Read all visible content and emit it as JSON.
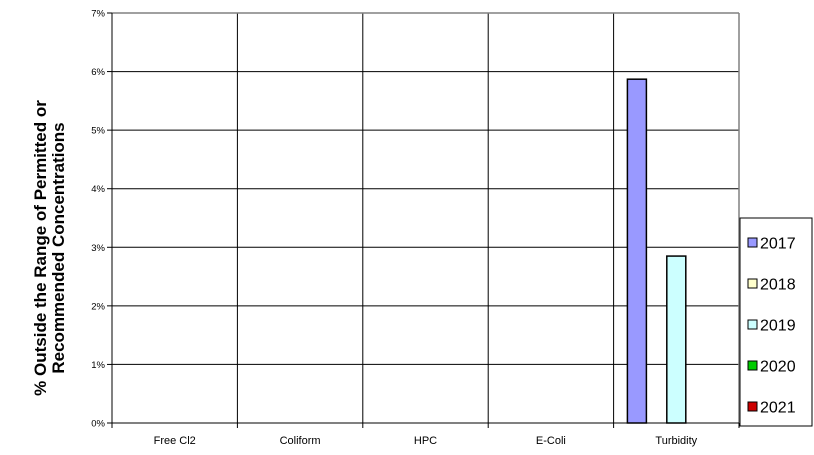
{
  "chart_data": {
    "type": "bar",
    "ylabel_lines": [
      "% Outside the Range of Permitted or",
      "Recommended Concentrations"
    ],
    "xlabel": "",
    "categories": [
      "Free Cl2",
      "Coliform",
      "HPC",
      "E-Coli",
      "Turbidity"
    ],
    "ylim": [
      0,
      7
    ],
    "y_ticks": [
      0,
      1,
      2,
      3,
      4,
      5,
      6,
      7
    ],
    "y_tick_labels": [
      "0%",
      "1%",
      "2%",
      "3%",
      "4%",
      "5%",
      "6%",
      "7%"
    ],
    "grid": true,
    "legend_position": "right",
    "series": [
      {
        "name": "2017",
        "color": "#9999ff",
        "values": [
          0,
          0,
          0,
          0,
          5.87
        ]
      },
      {
        "name": "2018",
        "color": "#ffffcc",
        "values": [
          0,
          0,
          0,
          0,
          0
        ]
      },
      {
        "name": "2019",
        "color": "#ccffff",
        "values": [
          0,
          0,
          0,
          0,
          2.85
        ]
      },
      {
        "name": "2020",
        "color": "#00cc00",
        "values": [
          0,
          0,
          0,
          0,
          0
        ]
      },
      {
        "name": "2021",
        "color": "#cc0000",
        "values": [
          0,
          0,
          0,
          0,
          0
        ]
      }
    ]
  }
}
